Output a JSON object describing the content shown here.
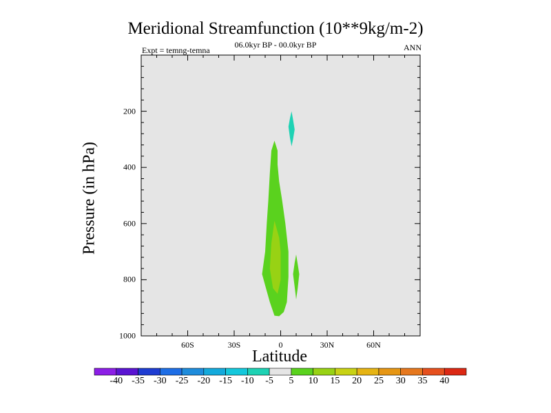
{
  "chart_data": {
    "type": "contour",
    "title": "Meridional Streamfunction (10**9kg/m-2)",
    "subtitle": "06.0kyr BP - 00.0kyr BP",
    "left_label": "Expt = temng-temna",
    "right_label": "ANN",
    "xlabel": "Latitude",
    "ylabel": "Pressure (in hPa)",
    "xlim": [
      -90,
      90
    ],
    "ylim": [
      0,
      1000
    ],
    "x_ticks": [
      {
        "value": -60,
        "label": "60S"
      },
      {
        "value": -30,
        "label": "30S"
      },
      {
        "value": 0,
        "label": "0"
      },
      {
        "value": 30,
        "label": "30N"
      },
      {
        "value": 60,
        "label": "60N"
      }
    ],
    "y_ticks": [
      {
        "value": 200,
        "label": "200"
      },
      {
        "value": 400,
        "label": "400"
      },
      {
        "value": 600,
        "label": "600"
      },
      {
        "value": 800,
        "label": "800"
      },
      {
        "value": 1000,
        "label": "1000"
      }
    ],
    "background_color": "#e5e5e5",
    "regions": [
      {
        "name": "positive-cell-5-10",
        "level": "5 to 10",
        "color": "#5ad21e",
        "points": [
          [
            -4,
            305
          ],
          [
            -2,
            340
          ],
          [
            -2,
            390
          ],
          [
            -1,
            450
          ],
          [
            1,
            520
          ],
          [
            3,
            600
          ],
          [
            5,
            700
          ],
          [
            5,
            790
          ],
          [
            4,
            880
          ],
          [
            2,
            915
          ],
          [
            -1,
            930
          ],
          [
            -4,
            928
          ],
          [
            -7,
            880
          ],
          [
            -10,
            820
          ],
          [
            -12,
            780
          ],
          [
            -10,
            700
          ],
          [
            -9,
            600
          ],
          [
            -8,
            520
          ],
          [
            -7,
            420
          ],
          [
            -6,
            340
          ]
        ]
      },
      {
        "name": "positive-cell-10-15",
        "level": "10 to 15",
        "color": "#98d214",
        "points": [
          [
            -4,
            590
          ],
          [
            -1,
            650
          ],
          [
            0,
            700
          ],
          [
            0,
            800
          ],
          [
            -2,
            850
          ],
          [
            -5,
            830
          ],
          [
            -7,
            760
          ],
          [
            -6,
            670
          ]
        ]
      },
      {
        "name": "positive-cell-small",
        "level": "5 to 10",
        "color": "#5ad21e",
        "points": [
          [
            10,
            710
          ],
          [
            11,
            745
          ],
          [
            12,
            780
          ],
          [
            11,
            830
          ],
          [
            10,
            870
          ],
          [
            9,
            825
          ],
          [
            8,
            780
          ],
          [
            9,
            740
          ]
        ]
      },
      {
        "name": "negative-cell-upper",
        "level": "-10 to -5",
        "color": "#1ed2b4",
        "points": [
          [
            7,
            200
          ],
          [
            8,
            230
          ],
          [
            9,
            265
          ],
          [
            8,
            300
          ],
          [
            7,
            325
          ],
          [
            6,
            295
          ],
          [
            5,
            255
          ],
          [
            6,
            225
          ]
        ]
      }
    ],
    "colorbar": {
      "levels": [
        "-40",
        "-35",
        "-30",
        "-25",
        "-20",
        "-15",
        "-10",
        "-5",
        "5",
        "10",
        "15",
        "20",
        "25",
        "30",
        "35",
        "40"
      ],
      "colors": [
        "#8c1ee6",
        "#5a14d2",
        "#1e3cd2",
        "#1e6ee6",
        "#1e8cdc",
        "#14aadc",
        "#14c8dc",
        "#1ed2b4",
        "#e5e5e5",
        "#5ad21e",
        "#98d214",
        "#c8d214",
        "#e6b414",
        "#e69614",
        "#e6781e",
        "#e6501e",
        "#dc2814"
      ]
    }
  }
}
